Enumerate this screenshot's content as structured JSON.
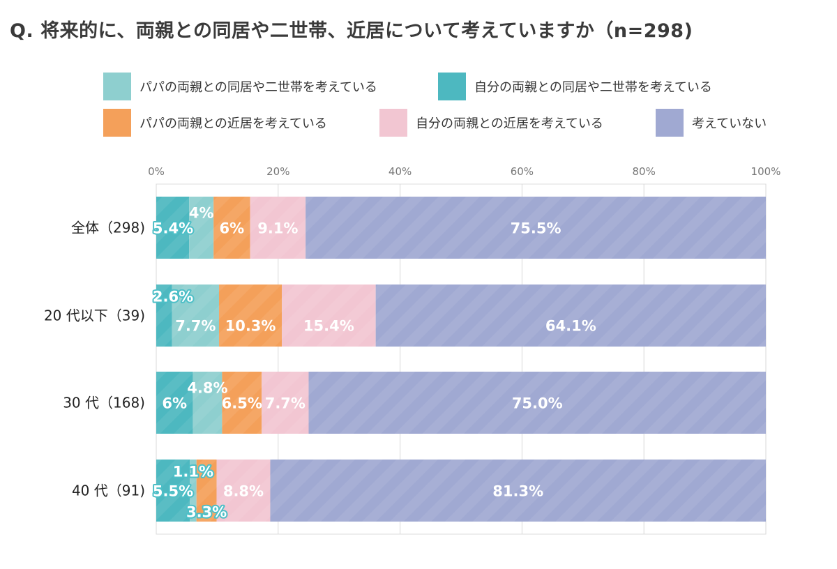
{
  "title": "Q. 将来的に、両親との同居や二世帯、近居について考えていますか（n=298)",
  "colors": {
    "papa_cohab": "#8ecfcf",
    "self_cohab": "#4db8c0",
    "papa_near": "#f4a05a",
    "self_near": "#f2c6d2",
    "none": "#a0a9d2"
  },
  "chart_data": {
    "type": "bar",
    "orientation": "horizontal",
    "stacked": true,
    "title": "Q. 将来的に、両親との同居や二世帯、近居について考えていますか（n=298)",
    "xlabel": "",
    "ylabel": "",
    "xlim": [
      0,
      100
    ],
    "ticks": [
      "0%",
      "20%",
      "40%",
      "60%",
      "80%",
      "100%"
    ],
    "tick_values": [
      0,
      20,
      40,
      60,
      80,
      100
    ],
    "legend_position": "top",
    "grid": true,
    "categories": [
      "全体（298)",
      "20 代以下（39)",
      "30 代（168)",
      "40 代（91)"
    ],
    "series": [
      {
        "name": "自分の両親との同居や二世帯を考えている",
        "color_key": "self_cohab",
        "values": [
          5.4,
          2.6,
          6,
          5.5
        ],
        "labels": [
          "5.4%",
          "2.6%",
          "6%",
          "5.5%"
        ]
      },
      {
        "name": "パパの両親との同居や二世帯を考えている",
        "color_key": "papa_cohab",
        "values": [
          4,
          7.7,
          4.8,
          1.1
        ],
        "labels": [
          "4%",
          "7.7%",
          "4.8%",
          "1.1%"
        ]
      },
      {
        "name": "パパの両親との近居を考えている",
        "color_key": "papa_near",
        "values": [
          6,
          10.3,
          6.5,
          3.3
        ],
        "labels": [
          "6%",
          "10.3%",
          "6.5%",
          "3.3%"
        ]
      },
      {
        "name": "自分の両親との近居を考えている",
        "color_key": "self_near",
        "values": [
          9.1,
          15.4,
          7.7,
          8.8
        ],
        "labels": [
          "9.1%",
          "15.4%",
          "7.7%",
          "8.8%"
        ]
      },
      {
        "name": "考えていない",
        "color_key": "none",
        "values": [
          75.5,
          64.1,
          75.0,
          81.3
        ],
        "labels": [
          "75.5%",
          "64.1%",
          "75.0%",
          "81.3%"
        ]
      }
    ]
  },
  "legend": [
    {
      "label": "パパの両親との同居や二世帯を考えている",
      "color_key": "papa_cohab"
    },
    {
      "label": "自分の両親との同居や二世帯を考えている",
      "color_key": "self_cohab"
    },
    {
      "label": "パパの両親との近居を考えている",
      "color_key": "papa_near"
    },
    {
      "label": "自分の両親との近居を考えている",
      "color_key": "self_near"
    },
    {
      "label": "考えていない",
      "color_key": "none"
    }
  ]
}
